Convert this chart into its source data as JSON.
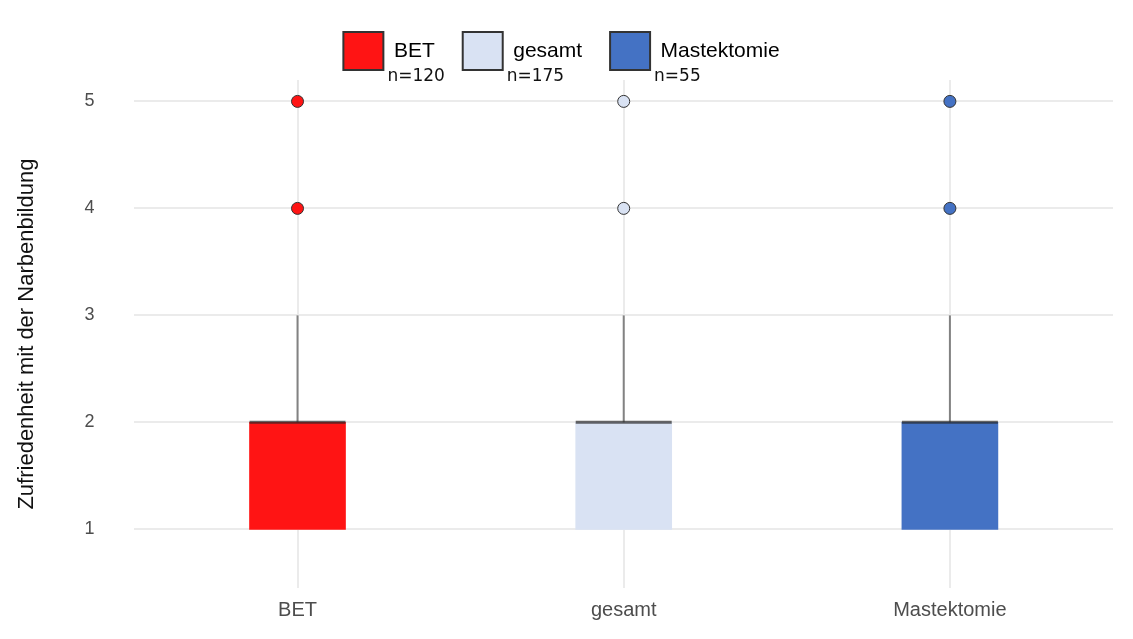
{
  "chart_data": {
    "type": "box",
    "ylabel": "Zufriedenheit mit der Narbenbildung",
    "categories": [
      "BET",
      "gesamt",
      "Mastektomie"
    ],
    "series": [
      {
        "name": "BET",
        "color": "#ff1414",
        "boxes": [
          {
            "low": 1,
            "q1": 1,
            "median": 2,
            "q3": 2,
            "high": 3,
            "outliers": [
              4,
              5
            ]
          },
          null,
          null
        ]
      },
      {
        "name": "gesamt",
        "color": "#d9e2f3",
        "boxes": [
          null,
          {
            "low": 1,
            "q1": 1,
            "median": 2,
            "q3": 2,
            "high": 3,
            "outliers": [
              4,
              5
            ]
          },
          null
        ]
      },
      {
        "name": "Mastektomie",
        "color": "#4472c4",
        "boxes": [
          null,
          null,
          {
            "low": 1,
            "q1": 1,
            "median": 2,
            "q3": 2,
            "high": 3,
            "outliers": [
              4,
              5
            ]
          }
        ]
      }
    ],
    "ylim": [
      0.45,
      5.2
    ],
    "yticks": [
      1,
      2,
      3,
      4,
      5
    ],
    "grid": true,
    "legend": "top",
    "annotations": [
      "n=120",
      "n=175",
      "n=55"
    ]
  }
}
